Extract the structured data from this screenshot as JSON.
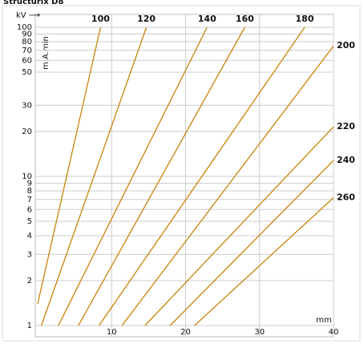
{
  "chart_data": {
    "type": "line",
    "title": "Structurix D8",
    "series_label": "kV ⟶",
    "y_label": "m.A.min",
    "x_label": "mm",
    "log_y": true,
    "grid": true,
    "color": "#c8830a",
    "xlim": [
      0,
      40
    ],
    "xticks": [
      10,
      20,
      30,
      40
    ],
    "ylim": [
      1,
      100
    ],
    "yticks": [
      1,
      2,
      3,
      4,
      5,
      6,
      7,
      8,
      9,
      10,
      20,
      30,
      50,
      60,
      70,
      80,
      90,
      100
    ],
    "series": [
      {
        "name": "100",
        "x": [
          0,
          8.5
        ],
        "values": [
          1.4,
          100
        ]
      },
      {
        "name": "120",
        "x": [
          0.5,
          14.7
        ],
        "values": [
          1,
          100
        ]
      },
      {
        "name": "140",
        "x": [
          2.8,
          22.9
        ],
        "values": [
          1,
          100
        ]
      },
      {
        "name": "160",
        "x": [
          5.5,
          28
        ],
        "values": [
          1,
          100
        ]
      },
      {
        "name": "180",
        "x": [
          8.3,
          36.1
        ],
        "values": [
          1,
          100
        ]
      },
      {
        "name": "200",
        "x": [
          11.4,
          40
        ],
        "values": [
          1,
          75
        ]
      },
      {
        "name": "220",
        "x": [
          14.5,
          40
        ],
        "values": [
          1,
          21.5
        ]
      },
      {
        "name": "240",
        "x": [
          17.9,
          40
        ],
        "values": [
          1,
          12.8
        ]
      },
      {
        "name": "260",
        "x": [
          21.2,
          40
        ],
        "values": [
          1,
          7.2
        ]
      }
    ]
  }
}
